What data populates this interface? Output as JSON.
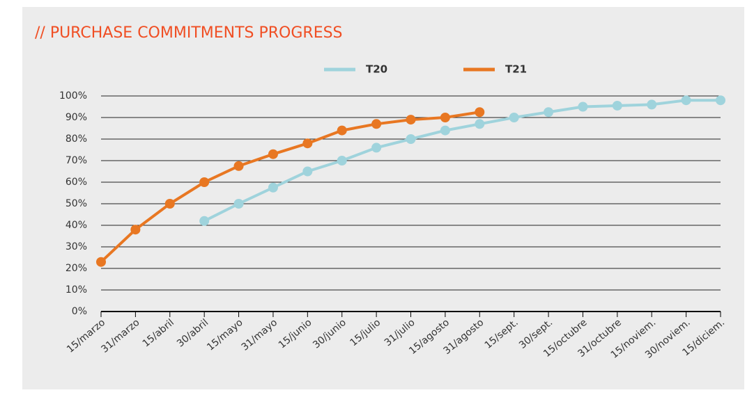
{
  "chart_data": {
    "type": "line",
    "title": "// PURCHASE COMMITMENTS PROGRESS",
    "categories": [
      "15/marzo",
      "31/marzo",
      "15/abril",
      "30/abril",
      "15/mayo",
      "31/mayo",
      "15/junio",
      "30/junio",
      "15/julio",
      "31/julio",
      "15/agosto",
      "31/agosto",
      "15/sept.",
      "30/sept.",
      "15/octubre",
      "31/octubre",
      "15/noviem.",
      "30/noviem.",
      "15/diciem."
    ],
    "series": [
      {
        "name": "T20",
        "color": "#9fd3dc",
        "values": [
          null,
          null,
          null,
          42,
          50,
          57.5,
          65,
          70,
          76,
          80,
          84,
          87,
          90,
          92.5,
          95,
          95.5,
          96,
          98,
          98
        ]
      },
      {
        "name": "T21",
        "color": "#e87722",
        "values": [
          23,
          38,
          50,
          60,
          67.5,
          73,
          78,
          84,
          87,
          89,
          90,
          92.5,
          null,
          null,
          null,
          null,
          null,
          null,
          null
        ]
      }
    ],
    "ylim": [
      0,
      100
    ],
    "yticks": [
      {
        "value": 0,
        "label": "0%"
      },
      {
        "value": 10,
        "label": "10%"
      },
      {
        "value": 20,
        "label": "20%"
      },
      {
        "value": 30,
        "label": "30%"
      },
      {
        "value": 40,
        "label": "40%"
      },
      {
        "value": 50,
        "label": "50%"
      },
      {
        "value": 60,
        "label": "60%"
      },
      {
        "value": 70,
        "label": "70%"
      },
      {
        "value": 80,
        "label": "80%"
      },
      {
        "value": 90,
        "label": "90%"
      },
      {
        "value": 100,
        "label": "100%"
      }
    ],
    "grid": true,
    "legend": "top"
  }
}
